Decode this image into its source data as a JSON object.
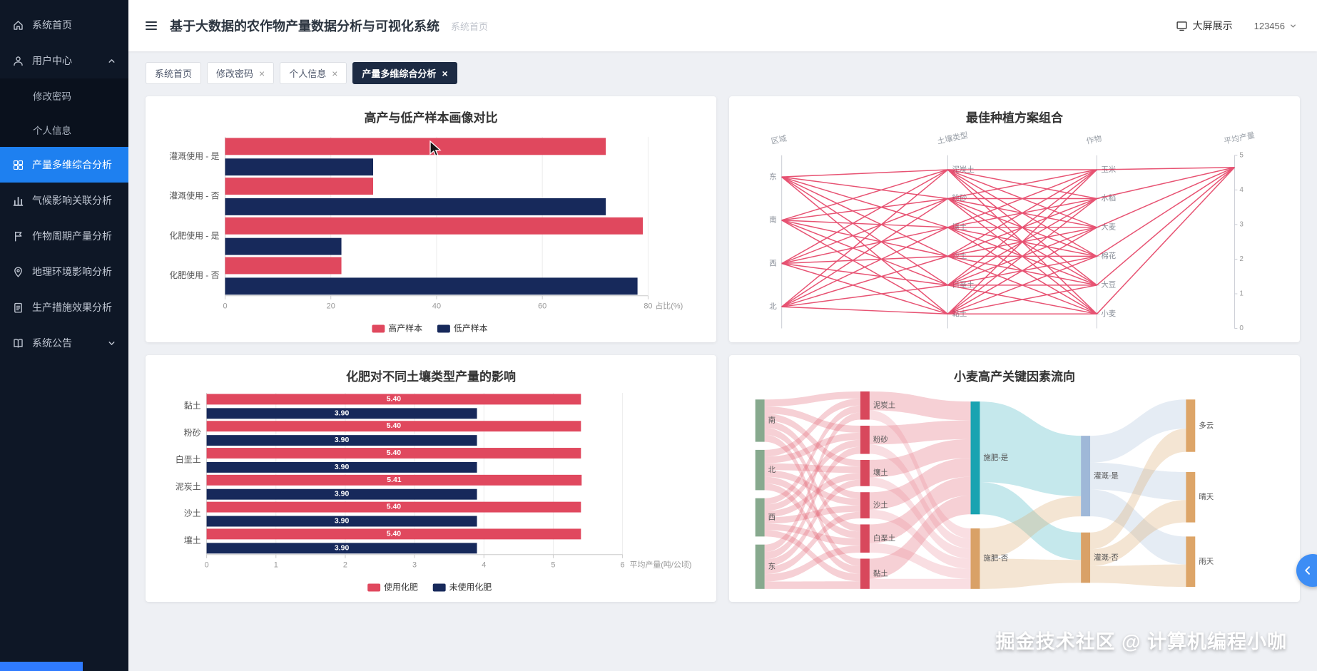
{
  "header": {
    "title": "基于大数据的农作物产量数据分析与可视化系统",
    "breadcrumb": "系统首页",
    "screen_button": "大屏展示",
    "username": "123456"
  },
  "sidebar": {
    "items": [
      {
        "id": "home",
        "label": "系统首页",
        "icon": "home-icon",
        "type": "item"
      },
      {
        "id": "user-center",
        "label": "用户中心",
        "icon": "user-icon",
        "type": "group-open"
      },
      {
        "id": "change-password",
        "label": "修改密码",
        "type": "subitem"
      },
      {
        "id": "profile",
        "label": "个人信息",
        "type": "subitem"
      },
      {
        "id": "yield-analysis",
        "label": "产量多维综合分析",
        "icon": "dashboard-icon",
        "type": "item",
        "active": true
      },
      {
        "id": "climate-analysis",
        "label": "气候影响关联分析",
        "icon": "bar-chart-icon",
        "type": "item"
      },
      {
        "id": "crop-cycle-analysis",
        "label": "作物周期产量分析",
        "icon": "flag-icon",
        "type": "item"
      },
      {
        "id": "geo-analysis",
        "label": "地理环境影响分析",
        "icon": "pin-icon",
        "type": "item"
      },
      {
        "id": "measure-analysis",
        "label": "生产措施效果分析",
        "icon": "clipboard-icon",
        "type": "item"
      },
      {
        "id": "announcements",
        "label": "系统公告",
        "icon": "book-icon",
        "type": "group-closed"
      }
    ]
  },
  "tabs": [
    {
      "label": "系统首页",
      "closable": false,
      "active": false
    },
    {
      "label": "修改密码",
      "closable": true,
      "active": false
    },
    {
      "label": "个人信息",
      "closable": true,
      "active": false
    },
    {
      "label": "产量多维综合分析",
      "closable": true,
      "active": true
    }
  ],
  "watermark": "掘金技术社区 @ 计算机编程小咖",
  "chart_data": [
    {
      "type": "bar",
      "orientation": "horizontal",
      "title": "高产与低产样本画像对比",
      "categories": [
        "灌溉使用 - 是",
        "灌溉使用 - 否",
        "化肥使用 - 是",
        "化肥使用 - 否"
      ],
      "series": [
        {
          "name": "高产样本",
          "color": "#e0485e",
          "values": [
            72,
            28,
            79,
            22
          ]
        },
        {
          "name": "低产样本",
          "color": "#17295b",
          "values": [
            28,
            72,
            22,
            78
          ]
        }
      ],
      "xlabel": "占比(%)",
      "xlim": [
        0,
        80
      ],
      "xticks": [
        0,
        20,
        40,
        60,
        80
      ],
      "show_values": false,
      "legend_position": "bottom",
      "grid": true
    },
    {
      "type": "parallel",
      "title": "最佳种植方案组合",
      "line_color": "#e22850",
      "converge_value": 4.65,
      "axes": [
        {
          "name": "区域",
          "categories": [
            "东",
            "南",
            "西",
            "北"
          ]
        },
        {
          "name": "土壤类型",
          "categories": [
            "泥炭土",
            "粉砂",
            "壤土",
            "沙土",
            "白垩土",
            "黏土"
          ]
        },
        {
          "name": "作物",
          "categories": [
            "玉米",
            "水稻",
            "大麦",
            "棉花",
            "大豆",
            "小麦"
          ]
        },
        {
          "name": "平均产量",
          "range": [
            0,
            5
          ],
          "ticks": [
            0,
            1,
            2,
            3,
            4,
            5
          ]
        }
      ]
    },
    {
      "type": "bar",
      "orientation": "horizontal",
      "title": "化肥对不同土壤类型产量的影响",
      "categories": [
        "黏土",
        "粉砂",
        "白垩土",
        "泥炭土",
        "沙土",
        "壤土"
      ],
      "series": [
        {
          "name": "使用化肥",
          "color": "#e0485e",
          "values": [
            5.4,
            5.4,
            5.4,
            5.41,
            5.4,
            5.4
          ]
        },
        {
          "name": "未使用化肥",
          "color": "#17295b",
          "values": [
            3.9,
            3.9,
            3.9,
            3.9,
            3.9,
            3.9
          ]
        }
      ],
      "xlabel": "平均产量(吨/公顷)",
      "xlim": [
        0,
        6
      ],
      "xticks": [
        0,
        1,
        2,
        3,
        4,
        5,
        6
      ],
      "show_values": true,
      "legend_position": "bottom",
      "grid": true
    },
    {
      "type": "sankey",
      "title": "小麦高产关键因素流向",
      "columns": [
        {
          "x": 0.02,
          "nodes": [
            {
              "name": "南",
              "color": "#87a98e",
              "y": 0.04,
              "h": 0.21
            },
            {
              "name": "北",
              "color": "#87a98e",
              "y": 0.29,
              "h": 0.2
            },
            {
              "name": "西",
              "color": "#87a98e",
              "y": 0.53,
              "h": 0.19
            },
            {
              "name": "东",
              "color": "#87a98e",
              "y": 0.76,
              "h": 0.22
            }
          ]
        },
        {
          "x": 0.22,
          "nodes": [
            {
              "name": "泥炭土",
              "color": "#d8485c",
              "y": 0.0,
              "h": 0.14
            },
            {
              "name": "粉砂",
              "color": "#d8485c",
              "y": 0.17,
              "h": 0.14
            },
            {
              "name": "壤土",
              "color": "#d8485c",
              "y": 0.34,
              "h": 0.13
            },
            {
              "name": "沙土",
              "color": "#d8485c",
              "y": 0.5,
              "h": 0.13
            },
            {
              "name": "白垩土",
              "color": "#d8485c",
              "y": 0.66,
              "h": 0.14
            },
            {
              "name": "黏土",
              "color": "#d8485c",
              "y": 0.83,
              "h": 0.15
            }
          ]
        },
        {
          "x": 0.43,
          "nodes": [
            {
              "name": "施肥-是",
              "color": "#19a3b1",
              "y": 0.05,
              "h": 0.56
            },
            {
              "name": "施肥-否",
              "color": "#d9a167",
              "y": 0.68,
              "h": 0.3
            }
          ]
        },
        {
          "x": 0.64,
          "nodes": [
            {
              "name": "灌溉-是",
              "color": "#9fb8d8",
              "y": 0.22,
              "h": 0.4
            },
            {
              "name": "灌溉-否",
              "color": "#d9a167",
              "y": 0.7,
              "h": 0.25
            }
          ]
        },
        {
          "x": 0.84,
          "nodes": [
            {
              "name": "多云",
              "color": "#dda568",
              "y": 0.04,
              "h": 0.26
            },
            {
              "name": "晴天",
              "color": "#dda568",
              "y": 0.4,
              "h": 0.25
            },
            {
              "name": "雨天",
              "color": "#dda568",
              "y": 0.72,
              "h": 0.25
            }
          ]
        }
      ],
      "flows": [
        {
          "sources": [
            "南",
            "北",
            "西",
            "东"
          ],
          "targets": [
            "泥炭土",
            "粉砂",
            "壤土",
            "沙土",
            "白垩土",
            "黏土"
          ],
          "weight": 1,
          "color": "#e26574"
        },
        {
          "sources": [
            "泥炭土",
            "粉砂",
            "壤土",
            "沙土",
            "白垩土",
            "黏土"
          ],
          "targets": [
            "施肥-是"
          ],
          "weight": 2,
          "color": "#e26574"
        },
        {
          "sources": [
            "泥炭土",
            "粉砂",
            "壤土",
            "沙土",
            "白垩土",
            "黏土"
          ],
          "targets": [
            "施肥-否"
          ],
          "weight": 1,
          "color": "#eb93a0"
        },
        {
          "sources": [
            "施肥-是"
          ],
          "targets": [
            "灌溉-是"
          ],
          "weight": 3,
          "color": "#3fb3bf"
        },
        {
          "sources": [
            "施肥-是"
          ],
          "targets": [
            "灌溉-否"
          ],
          "weight": 1.2,
          "color": "#3fb3bf"
        },
        {
          "sources": [
            "施肥-否"
          ],
          "targets": [
            "灌溉-是",
            "灌溉-否"
          ],
          "weight": 1,
          "color": "#dca96e"
        },
        {
          "sources": [
            "灌溉-是"
          ],
          "targets": [
            "多云",
            "晴天",
            "雨天"
          ],
          "weight": 1,
          "color": "#a9c0dc"
        },
        {
          "sources": [
            "灌溉-否"
          ],
          "targets": [
            "多云",
            "晴天",
            "雨天"
          ],
          "weight": 0.8,
          "color": "#dca96e"
        }
      ]
    }
  ]
}
